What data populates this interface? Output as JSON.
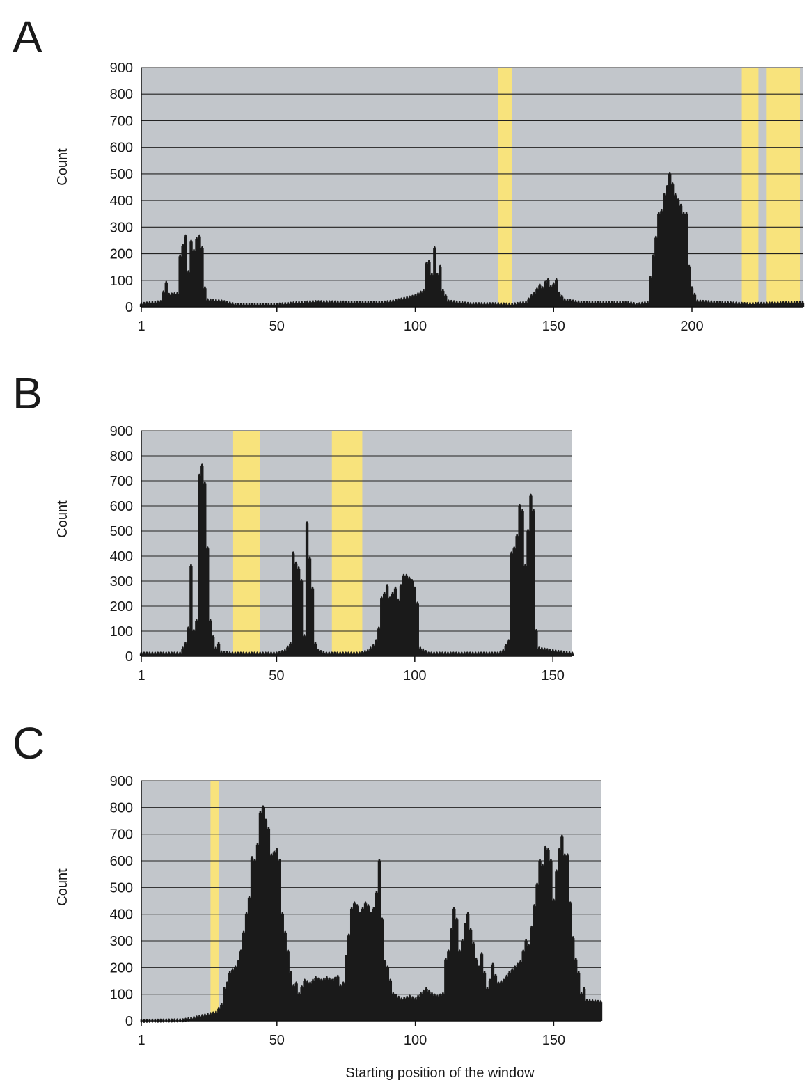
{
  "figure": {
    "xlabel": "Starting position of the window",
    "ylabel": "Count"
  },
  "chart_data": [
    {
      "panel": "A",
      "type": "bar",
      "ylabel": "Count",
      "xlabel": "",
      "xlim": [
        1,
        240
      ],
      "ylim": [
        0,
        900
      ],
      "yticks": [
        0,
        100,
        200,
        300,
        400,
        500,
        600,
        700,
        800,
        900
      ],
      "xticks": [
        1,
        50,
        100,
        150,
        200
      ],
      "grid": true,
      "background_color": "#c2c6cb",
      "highlight_color": "#f8e37c",
      "bar_color": "#1a1a1a",
      "highlighted_ranges": [
        [
          130,
          135
        ],
        [
          218,
          224
        ],
        [
          227,
          239
        ]
      ],
      "profile": [
        [
          1,
          10
        ],
        [
          8,
          18
        ],
        [
          10,
          90
        ],
        [
          11,
          45
        ],
        [
          14,
          48
        ],
        [
          15,
          190
        ],
        [
          16,
          230
        ],
        [
          17,
          265
        ],
        [
          18,
          130
        ],
        [
          19,
          245
        ],
        [
          20,
          210
        ],
        [
          21,
          255
        ],
        [
          22,
          265
        ],
        [
          23,
          220
        ],
        [
          24,
          70
        ],
        [
          25,
          25
        ],
        [
          30,
          20
        ],
        [
          35,
          8
        ],
        [
          50,
          8
        ],
        [
          63,
          18
        ],
        [
          70,
          17
        ],
        [
          80,
          15
        ],
        [
          88,
          15
        ],
        [
          92,
          20
        ],
        [
          96,
          30
        ],
        [
          100,
          40
        ],
        [
          103,
          60
        ],
        [
          104,
          160
        ],
        [
          105,
          170
        ],
        [
          106,
          120
        ],
        [
          107,
          220
        ],
        [
          108,
          120
        ],
        [
          109,
          150
        ],
        [
          110,
          60
        ],
        [
          112,
          20
        ],
        [
          120,
          10
        ],
        [
          130,
          10
        ],
        [
          135,
          8
        ],
        [
          140,
          15
        ],
        [
          142,
          40
        ],
        [
          143,
          50
        ],
        [
          145,
          80
        ],
        [
          146,
          70
        ],
        [
          147,
          90
        ],
        [
          148,
          100
        ],
        [
          149,
          75
        ],
        [
          150,
          85
        ],
        [
          151,
          100
        ],
        [
          152,
          50
        ],
        [
          154,
          25
        ],
        [
          160,
          15
        ],
        [
          170,
          15
        ],
        [
          177,
          15
        ],
        [
          180,
          8
        ],
        [
          184,
          15
        ],
        [
          185,
          110
        ],
        [
          186,
          190
        ],
        [
          187,
          260
        ],
        [
          188,
          350
        ],
        [
          189,
          360
        ],
        [
          190,
          420
        ],
        [
          191,
          450
        ],
        [
          192,
          500
        ],
        [
          193,
          460
        ],
        [
          194,
          420
        ],
        [
          195,
          400
        ],
        [
          196,
          380
        ],
        [
          197,
          350
        ],
        [
          198,
          350
        ],
        [
          199,
          150
        ],
        [
          200,
          70
        ],
        [
          202,
          20
        ],
        [
          210,
          15
        ],
        [
          220,
          10
        ],
        [
          240,
          15
        ]
      ]
    },
    {
      "panel": "B",
      "type": "bar",
      "ylabel": "Count",
      "xlabel": "",
      "xlim": [
        1,
        157
      ],
      "ylim": [
        0,
        900
      ],
      "yticks": [
        0,
        100,
        200,
        300,
        400,
        500,
        600,
        700,
        800,
        900
      ],
      "xticks": [
        1,
        50,
        100,
        150
      ],
      "grid": true,
      "background_color": "#c2c6cb",
      "highlight_color": "#f8e37c",
      "bar_color": "#1a1a1a",
      "highlighted_ranges": [
        [
          34,
          44
        ],
        [
          70,
          81
        ]
      ],
      "profile": [
        [
          1,
          10
        ],
        [
          15,
          10
        ],
        [
          17,
          50
        ],
        [
          18,
          110
        ],
        [
          19,
          360
        ],
        [
          20,
          100
        ],
        [
          21,
          140
        ],
        [
          22,
          720
        ],
        [
          23,
          760
        ],
        [
          24,
          690
        ],
        [
          25,
          430
        ],
        [
          26,
          140
        ],
        [
          27,
          75
        ],
        [
          28,
          30
        ],
        [
          29,
          50
        ],
        [
          30,
          15
        ],
        [
          34,
          10
        ],
        [
          50,
          10
        ],
        [
          53,
          20
        ],
        [
          55,
          50
        ],
        [
          56,
          410
        ],
        [
          57,
          370
        ],
        [
          58,
          350
        ],
        [
          59,
          300
        ],
        [
          60,
          80
        ],
        [
          61,
          530
        ],
        [
          62,
          390
        ],
        [
          63,
          270
        ],
        [
          64,
          50
        ],
        [
          65,
          20
        ],
        [
          68,
          10
        ],
        [
          80,
          10
        ],
        [
          83,
          20
        ],
        [
          85,
          40
        ],
        [
          86,
          60
        ],
        [
          87,
          110
        ],
        [
          88,
          230
        ],
        [
          89,
          250
        ],
        [
          90,
          280
        ],
        [
          91,
          230
        ],
        [
          92,
          250
        ],
        [
          93,
          270
        ],
        [
          94,
          220
        ],
        [
          95,
          280
        ],
        [
          96,
          320
        ],
        [
          97,
          320
        ],
        [
          98,
          310
        ],
        [
          99,
          300
        ],
        [
          100,
          270
        ],
        [
          101,
          210
        ],
        [
          102,
          30
        ],
        [
          105,
          10
        ],
        [
          130,
          10
        ],
        [
          132,
          20
        ],
        [
          134,
          60
        ],
        [
          135,
          410
        ],
        [
          136,
          430
        ],
        [
          137,
          480
        ],
        [
          138,
          600
        ],
        [
          139,
          580
        ],
        [
          140,
          360
        ],
        [
          141,
          500
        ],
        [
          142,
          640
        ],
        [
          143,
          580
        ],
        [
          144,
          100
        ],
        [
          145,
          30
        ],
        [
          150,
          20
        ],
        [
          157,
          10
        ]
      ]
    },
    {
      "panel": "C",
      "type": "bar",
      "ylabel": "Count",
      "xlabel": "Starting position of the window",
      "xlim": [
        1,
        167
      ],
      "ylim": [
        0,
        900
      ],
      "yticks": [
        0,
        100,
        200,
        300,
        400,
        500,
        600,
        700,
        800,
        900
      ],
      "xticks": [
        1,
        50,
        100,
        150
      ],
      "grid": true,
      "background_color": "#c2c6cb",
      "highlight_color": "#f8e37c",
      "bar_color": "#1a1a1a",
      "highlighted_ranges": [
        [
          26,
          29
        ]
      ],
      "profile": [
        [
          1,
          0
        ],
        [
          16,
          2
        ],
        [
          20,
          10
        ],
        [
          24,
          20
        ],
        [
          28,
          30
        ],
        [
          30,
          60
        ],
        [
          31,
          120
        ],
        [
          32,
          140
        ],
        [
          33,
          180
        ],
        [
          34,
          190
        ],
        [
          35,
          200
        ],
        [
          36,
          220
        ],
        [
          37,
          260
        ],
        [
          38,
          330
        ],
        [
          39,
          400
        ],
        [
          40,
          460
        ],
        [
          41,
          610
        ],
        [
          42,
          600
        ],
        [
          43,
          660
        ],
        [
          44,
          780
        ],
        [
          45,
          800
        ],
        [
          46,
          750
        ],
        [
          47,
          720
        ],
        [
          48,
          620
        ],
        [
          49,
          630
        ],
        [
          50,
          640
        ],
        [
          51,
          600
        ],
        [
          52,
          400
        ],
        [
          53,
          330
        ],
        [
          54,
          260
        ],
        [
          55,
          180
        ],
        [
          56,
          130
        ],
        [
          57,
          140
        ],
        [
          58,
          100
        ],
        [
          60,
          150
        ],
        [
          62,
          140
        ],
        [
          64,
          160
        ],
        [
          66,
          150
        ],
        [
          68,
          160
        ],
        [
          70,
          150
        ],
        [
          72,
          165
        ],
        [
          73,
          130
        ],
        [
          74,
          140
        ],
        [
          75,
          240
        ],
        [
          76,
          320
        ],
        [
          77,
          420
        ],
        [
          78,
          440
        ],
        [
          79,
          430
        ],
        [
          80,
          400
        ],
        [
          81,
          420
        ],
        [
          82,
          440
        ],
        [
          83,
          430
        ],
        [
          84,
          400
        ],
        [
          85,
          420
        ],
        [
          86,
          480
        ],
        [
          87,
          600
        ],
        [
          88,
          380
        ],
        [
          89,
          220
        ],
        [
          90,
          200
        ],
        [
          92,
          100
        ],
        [
          95,
          80
        ],
        [
          98,
          90
        ],
        [
          100,
          80
        ],
        [
          102,
          100
        ],
        [
          104,
          120
        ],
        [
          106,
          100
        ],
        [
          108,
          90
        ],
        [
          110,
          100
        ],
        [
          111,
          230
        ],
        [
          112,
          260
        ],
        [
          113,
          340
        ],
        [
          114,
          420
        ],
        [
          115,
          380
        ],
        [
          116,
          260
        ],
        [
          117,
          300
        ],
        [
          118,
          360
        ],
        [
          119,
          400
        ],
        [
          120,
          340
        ],
        [
          121,
          290
        ],
        [
          122,
          230
        ],
        [
          123,
          200
        ],
        [
          124,
          250
        ],
        [
          125,
          180
        ],
        [
          126,
          120
        ],
        [
          127,
          150
        ],
        [
          128,
          210
        ],
        [
          129,
          170
        ],
        [
          130,
          140
        ],
        [
          132,
          150
        ],
        [
          134,
          180
        ],
        [
          136,
          200
        ],
        [
          138,
          220
        ],
        [
          139,
          260
        ],
        [
          140,
          300
        ],
        [
          141,
          280
        ],
        [
          142,
          350
        ],
        [
          143,
          430
        ],
        [
          144,
          510
        ],
        [
          145,
          600
        ],
        [
          146,
          580
        ],
        [
          147,
          650
        ],
        [
          148,
          640
        ],
        [
          149,
          600
        ],
        [
          150,
          450
        ],
        [
          151,
          560
        ],
        [
          152,
          640
        ],
        [
          153,
          690
        ],
        [
          154,
          620
        ],
        [
          155,
          620
        ],
        [
          156,
          440
        ],
        [
          157,
          310
        ],
        [
          158,
          230
        ],
        [
          159,
          180
        ],
        [
          160,
          100
        ],
        [
          161,
          120
        ],
        [
          162,
          75
        ],
        [
          167,
          70
        ]
      ]
    }
  ]
}
